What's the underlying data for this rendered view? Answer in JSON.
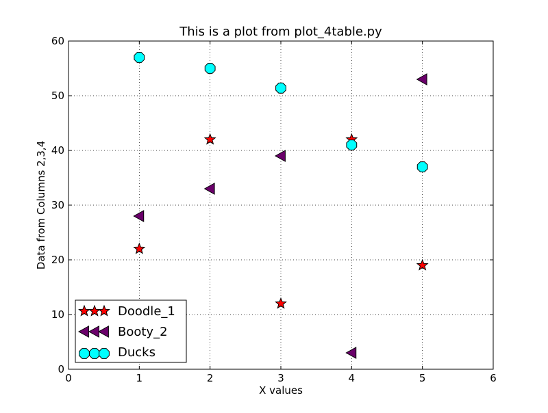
{
  "chart_data": {
    "type": "scatter",
    "title": "This is a plot from plot_4table.py",
    "xlabel": "X values",
    "ylabel": "Data from Columns 2,3,4",
    "xlim": [
      0,
      6
    ],
    "ylim": [
      0,
      60
    ],
    "xticks": [
      0,
      1,
      2,
      3,
      4,
      5,
      6
    ],
    "yticks": [
      0,
      10,
      20,
      30,
      40,
      50,
      60
    ],
    "grid": true,
    "legend_position": "lower-left",
    "x": [
      1,
      2,
      3,
      4,
      5
    ],
    "series": [
      {
        "name": "Doodle_1",
        "marker": "star",
        "color": "#ff0000",
        "values": [
          22,
          42,
          12,
          42,
          19
        ]
      },
      {
        "name": "Booty_2",
        "marker": "triangle-left",
        "color": "#6a006a",
        "values": [
          28,
          33,
          39,
          3,
          53
        ]
      },
      {
        "name": "Ducks",
        "marker": "octagon",
        "color": "#00ffff",
        "values": [
          57,
          55,
          51.4,
          41,
          37
        ]
      }
    ]
  }
}
